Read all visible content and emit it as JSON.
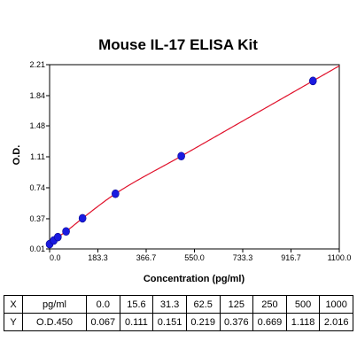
{
  "chart_data": {
    "type": "scatter",
    "title": "Mouse IL-17 ELISA Kit",
    "xlabel": "Concentration (pg/ml)",
    "ylabel": "O.D.",
    "xlim": [
      0,
      1100
    ],
    "ylim": [
      0.01,
      2.21
    ],
    "x_ticks": [
      "0.0",
      "183.3",
      "366.7",
      "550.0",
      "733.3",
      "916.7",
      "1100.0"
    ],
    "y_ticks": [
      "0.01",
      "0.37",
      "0.74",
      "1.11",
      "1.48",
      "1.84",
      "2.21"
    ],
    "grid": false,
    "points": [
      {
        "x": 0,
        "y": 0.067
      },
      {
        "x": 15.6,
        "y": 0.111
      },
      {
        "x": 31.3,
        "y": 0.151
      },
      {
        "x": 62.5,
        "y": 0.219
      },
      {
        "x": 125,
        "y": 0.376
      },
      {
        "x": 250,
        "y": 0.669
      },
      {
        "x": 500,
        "y": 1.118
      },
      {
        "x": 1000,
        "y": 2.016
      }
    ],
    "fit_curve": {
      "type": "curve",
      "color": "#e0102a",
      "x_range": [
        0,
        1100
      ]
    },
    "marker_color": "#1a1ae0"
  },
  "table": {
    "rows": [
      {
        "head": "X",
        "label": "pg/ml",
        "values": [
          "0.0",
          "15.6",
          "31.3",
          "62.5",
          "125",
          "250",
          "500",
          "1000"
        ]
      },
      {
        "head": "Y",
        "label": "O.D.450",
        "values": [
          "0.067",
          "0.111",
          "0.151",
          "0.219",
          "0.376",
          "0.669",
          "1.118",
          "2.016"
        ]
      }
    ]
  }
}
